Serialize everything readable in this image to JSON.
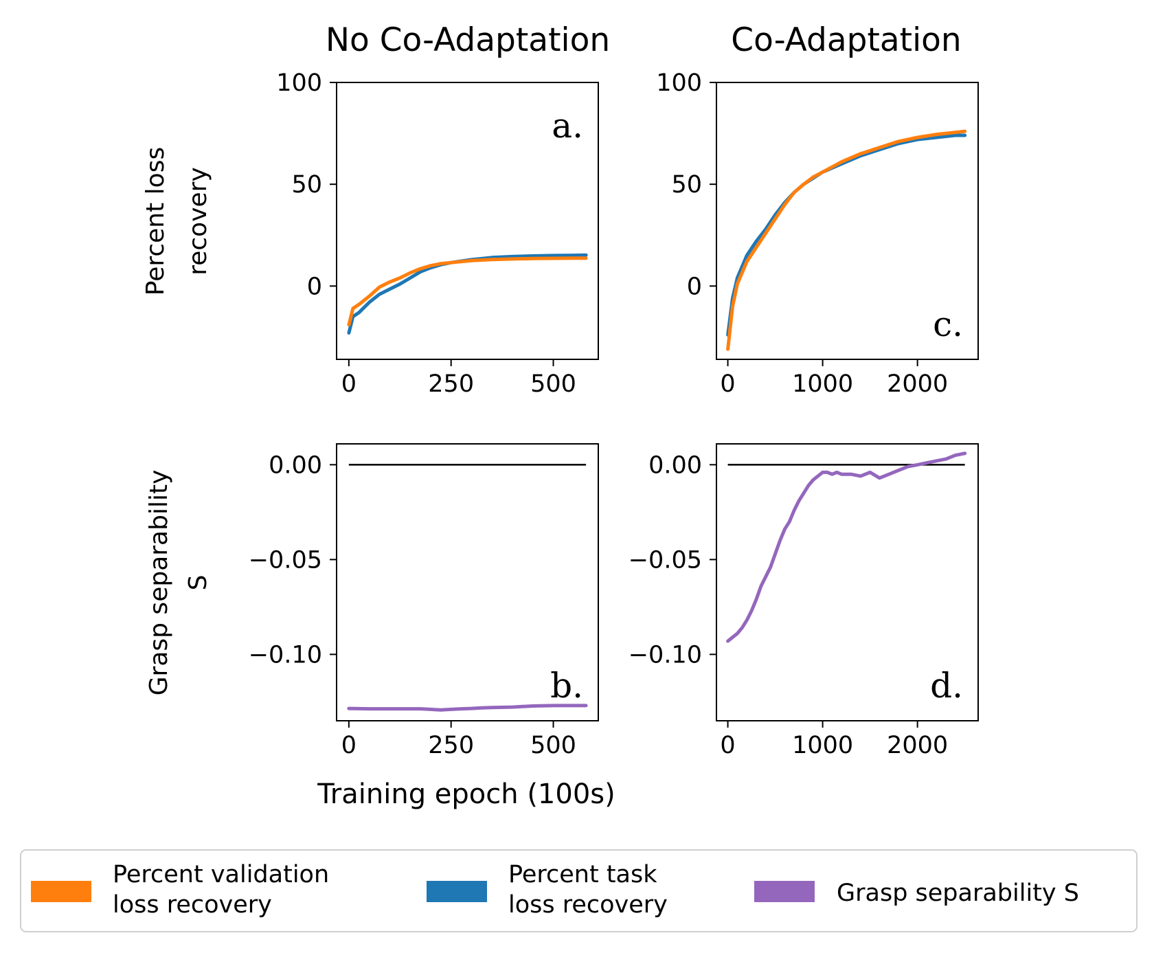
{
  "chart_data": [
    {
      "id": "a",
      "type": "line",
      "column_title": "No Co-Adaptation",
      "panel_label": "a.",
      "ylabel_lines": [
        "Percent loss",
        "recovery"
      ],
      "xlim": [
        -30,
        610
      ],
      "ylim": [
        -36,
        100
      ],
      "xticks": [
        0,
        250,
        500
      ],
      "xtick_labels": [
        "0",
        "250",
        "500"
      ],
      "yticks": [
        0,
        50,
        100
      ],
      "ytick_labels": [
        "0",
        "50",
        "100"
      ],
      "series": [
        {
          "name": "Percent task loss recovery",
          "color": "#1f77b4",
          "x": [
            0,
            10,
            25,
            50,
            75,
            100,
            125,
            150,
            175,
            200,
            225,
            250,
            300,
            350,
            400,
            450,
            500,
            550,
            580
          ],
          "y": [
            -23,
            -15,
            -13,
            -8,
            -4,
            -1.5,
            1,
            4,
            7,
            9,
            10.5,
            11.5,
            13,
            14,
            14.5,
            14.8,
            15,
            15.1,
            15.2
          ]
        },
        {
          "name": "Percent validation loss recovery",
          "color": "#ff7f0e",
          "x": [
            0,
            10,
            25,
            50,
            75,
            100,
            125,
            150,
            175,
            200,
            225,
            250,
            300,
            350,
            400,
            450,
            500,
            550,
            580
          ],
          "y": [
            -19,
            -11,
            -9,
            -5,
            -0.5,
            2,
            4,
            6.5,
            8.5,
            10,
            11,
            11.5,
            12.5,
            13,
            13.3,
            13.5,
            13.6,
            13.7,
            13.7
          ]
        }
      ]
    },
    {
      "id": "c",
      "type": "line",
      "column_title": "Co-Adaptation",
      "panel_label": "c.",
      "xlim": [
        -120,
        2640
      ],
      "ylim": [
        -36,
        100
      ],
      "xticks": [
        0,
        1000,
        2000
      ],
      "xtick_labels": [
        "0",
        "1000",
        "2000"
      ],
      "yticks": [
        0,
        50,
        100
      ],
      "ytick_labels": [
        "0",
        "50",
        "100"
      ],
      "series": [
        {
          "name": "Percent task loss recovery",
          "color": "#1f77b4",
          "x": [
            0,
            50,
            100,
            200,
            300,
            400,
            500,
            600,
            700,
            800,
            900,
            1000,
            1200,
            1400,
            1600,
            1800,
            2000,
            2200,
            2400,
            2500
          ],
          "y": [
            -24,
            -6,
            4,
            15,
            22,
            28,
            35,
            41,
            46,
            50,
            53,
            56,
            60,
            64,
            67,
            70,
            72,
            73,
            74,
            74
          ]
        },
        {
          "name": "Percent validation loss recovery",
          "color": "#ff7f0e",
          "x": [
            0,
            50,
            100,
            200,
            300,
            400,
            500,
            600,
            700,
            800,
            900,
            1000,
            1200,
            1400,
            1600,
            1800,
            2000,
            2200,
            2400,
            2500
          ],
          "y": [
            -31,
            -10,
            1,
            12,
            19,
            26,
            33,
            40,
            46,
            50,
            53.5,
            56,
            61,
            65,
            68,
            71,
            73,
            74.5,
            75.5,
            76
          ]
        }
      ]
    },
    {
      "id": "b",
      "type": "line",
      "panel_label": "b.",
      "ylabel_lines": [
        "Grasp separability",
        "S"
      ],
      "xlabel": "Training epoch (100s)",
      "xlim": [
        -30,
        610
      ],
      "ylim": [
        -0.135,
        0.011
      ],
      "xticks": [
        0,
        250,
        500
      ],
      "xtick_labels": [
        "0",
        "250",
        "500"
      ],
      "yticks": [
        0.0,
        -0.05,
        -0.1
      ],
      "ytick_labels": [
        "0.00",
        "−0.05",
        "−0.10"
      ],
      "zero_line": [
        0,
        580
      ],
      "series": [
        {
          "name": "Grasp separability S",
          "color": "#9467bd",
          "x": [
            0,
            50,
            100,
            150,
            175,
            200,
            225,
            250,
            275,
            300,
            325,
            350,
            400,
            425,
            450,
            500,
            550,
            580
          ],
          "y": [
            -0.1285,
            -0.1287,
            -0.1287,
            -0.1287,
            -0.1287,
            -0.129,
            -0.1293,
            -0.129,
            -0.1287,
            -0.1285,
            -0.1282,
            -0.128,
            -0.1278,
            -0.1275,
            -0.1272,
            -0.127,
            -0.127,
            -0.127
          ]
        }
      ]
    },
    {
      "id": "d",
      "type": "line",
      "panel_label": "d.",
      "xlim": [
        -120,
        2640
      ],
      "ylim": [
        -0.135,
        0.011
      ],
      "xticks": [
        0,
        1000,
        2000
      ],
      "xtick_labels": [
        "0",
        "1000",
        "2000"
      ],
      "yticks": [
        0.0,
        -0.05,
        -0.1
      ],
      "ytick_labels": [
        "0.00",
        "−0.05",
        "−0.10"
      ],
      "zero_line": [
        0,
        2500
      ],
      "series": [
        {
          "name": "Grasp separability S",
          "color": "#9467bd",
          "x": [
            0,
            50,
            100,
            150,
            200,
            250,
            300,
            350,
            400,
            450,
            500,
            550,
            600,
            650,
            700,
            750,
            800,
            850,
            900,
            950,
            1000,
            1050,
            1100,
            1150,
            1200,
            1300,
            1400,
            1500,
            1600,
            1700,
            1800,
            1900,
            2000,
            2100,
            2200,
            2300,
            2400,
            2500
          ],
          "y": [
            -0.093,
            -0.091,
            -0.089,
            -0.086,
            -0.082,
            -0.077,
            -0.071,
            -0.064,
            -0.059,
            -0.054,
            -0.047,
            -0.04,
            -0.034,
            -0.03,
            -0.024,
            -0.019,
            -0.015,
            -0.011,
            -0.008,
            -0.006,
            -0.004,
            -0.004,
            -0.005,
            -0.004,
            -0.005,
            -0.005,
            -0.006,
            -0.004,
            -0.007,
            -0.005,
            -0.003,
            -0.001,
            0.0,
            0.001,
            0.002,
            0.003,
            0.005,
            0.006
          ]
        }
      ]
    }
  ],
  "legend": {
    "position": "bottom",
    "items": [
      {
        "label_lines": [
          "Percent validation",
          "loss recovery"
        ],
        "color": "#ff7f0e"
      },
      {
        "label_lines": [
          "Percent task",
          "loss recovery"
        ],
        "color": "#1f77b4"
      },
      {
        "label_lines": [
          "Grasp separability S"
        ],
        "color": "#9467bd"
      }
    ]
  }
}
